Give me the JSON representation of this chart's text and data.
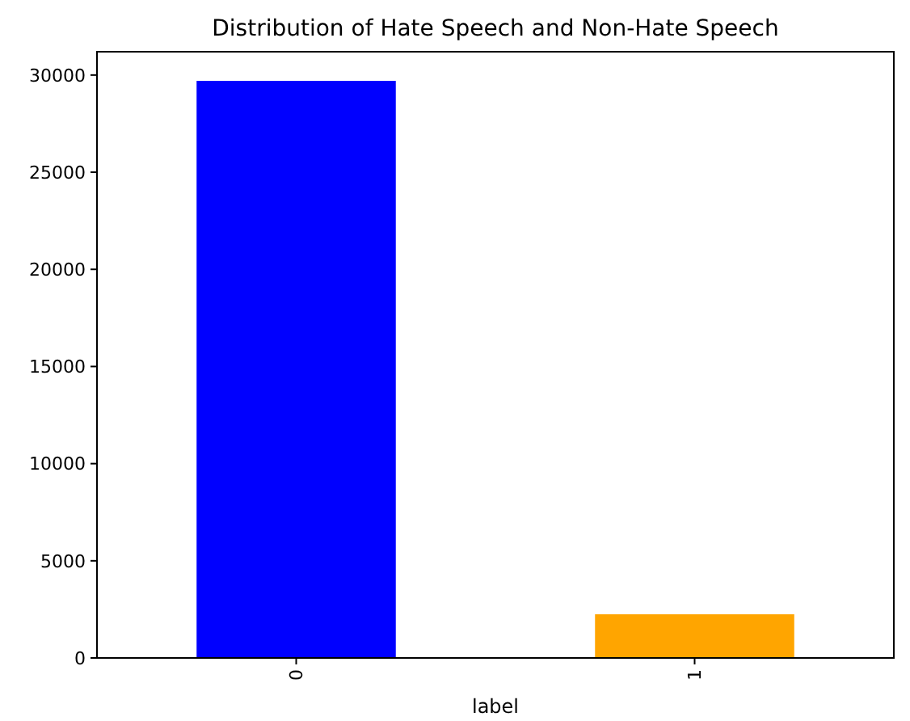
{
  "chart_data": {
    "type": "bar",
    "title": "Distribution of Hate Speech and Non-Hate Speech",
    "xlabel": "label",
    "categories": [
      "0",
      "1"
    ],
    "values": [
      29700,
      2250
    ],
    "colors": [
      "#0000ff",
      "#ffa500"
    ],
    "ylim": [
      0,
      31200
    ],
    "yticks": [
      0,
      5000,
      10000,
      15000,
      20000,
      25000,
      30000
    ],
    "grid": false
  }
}
